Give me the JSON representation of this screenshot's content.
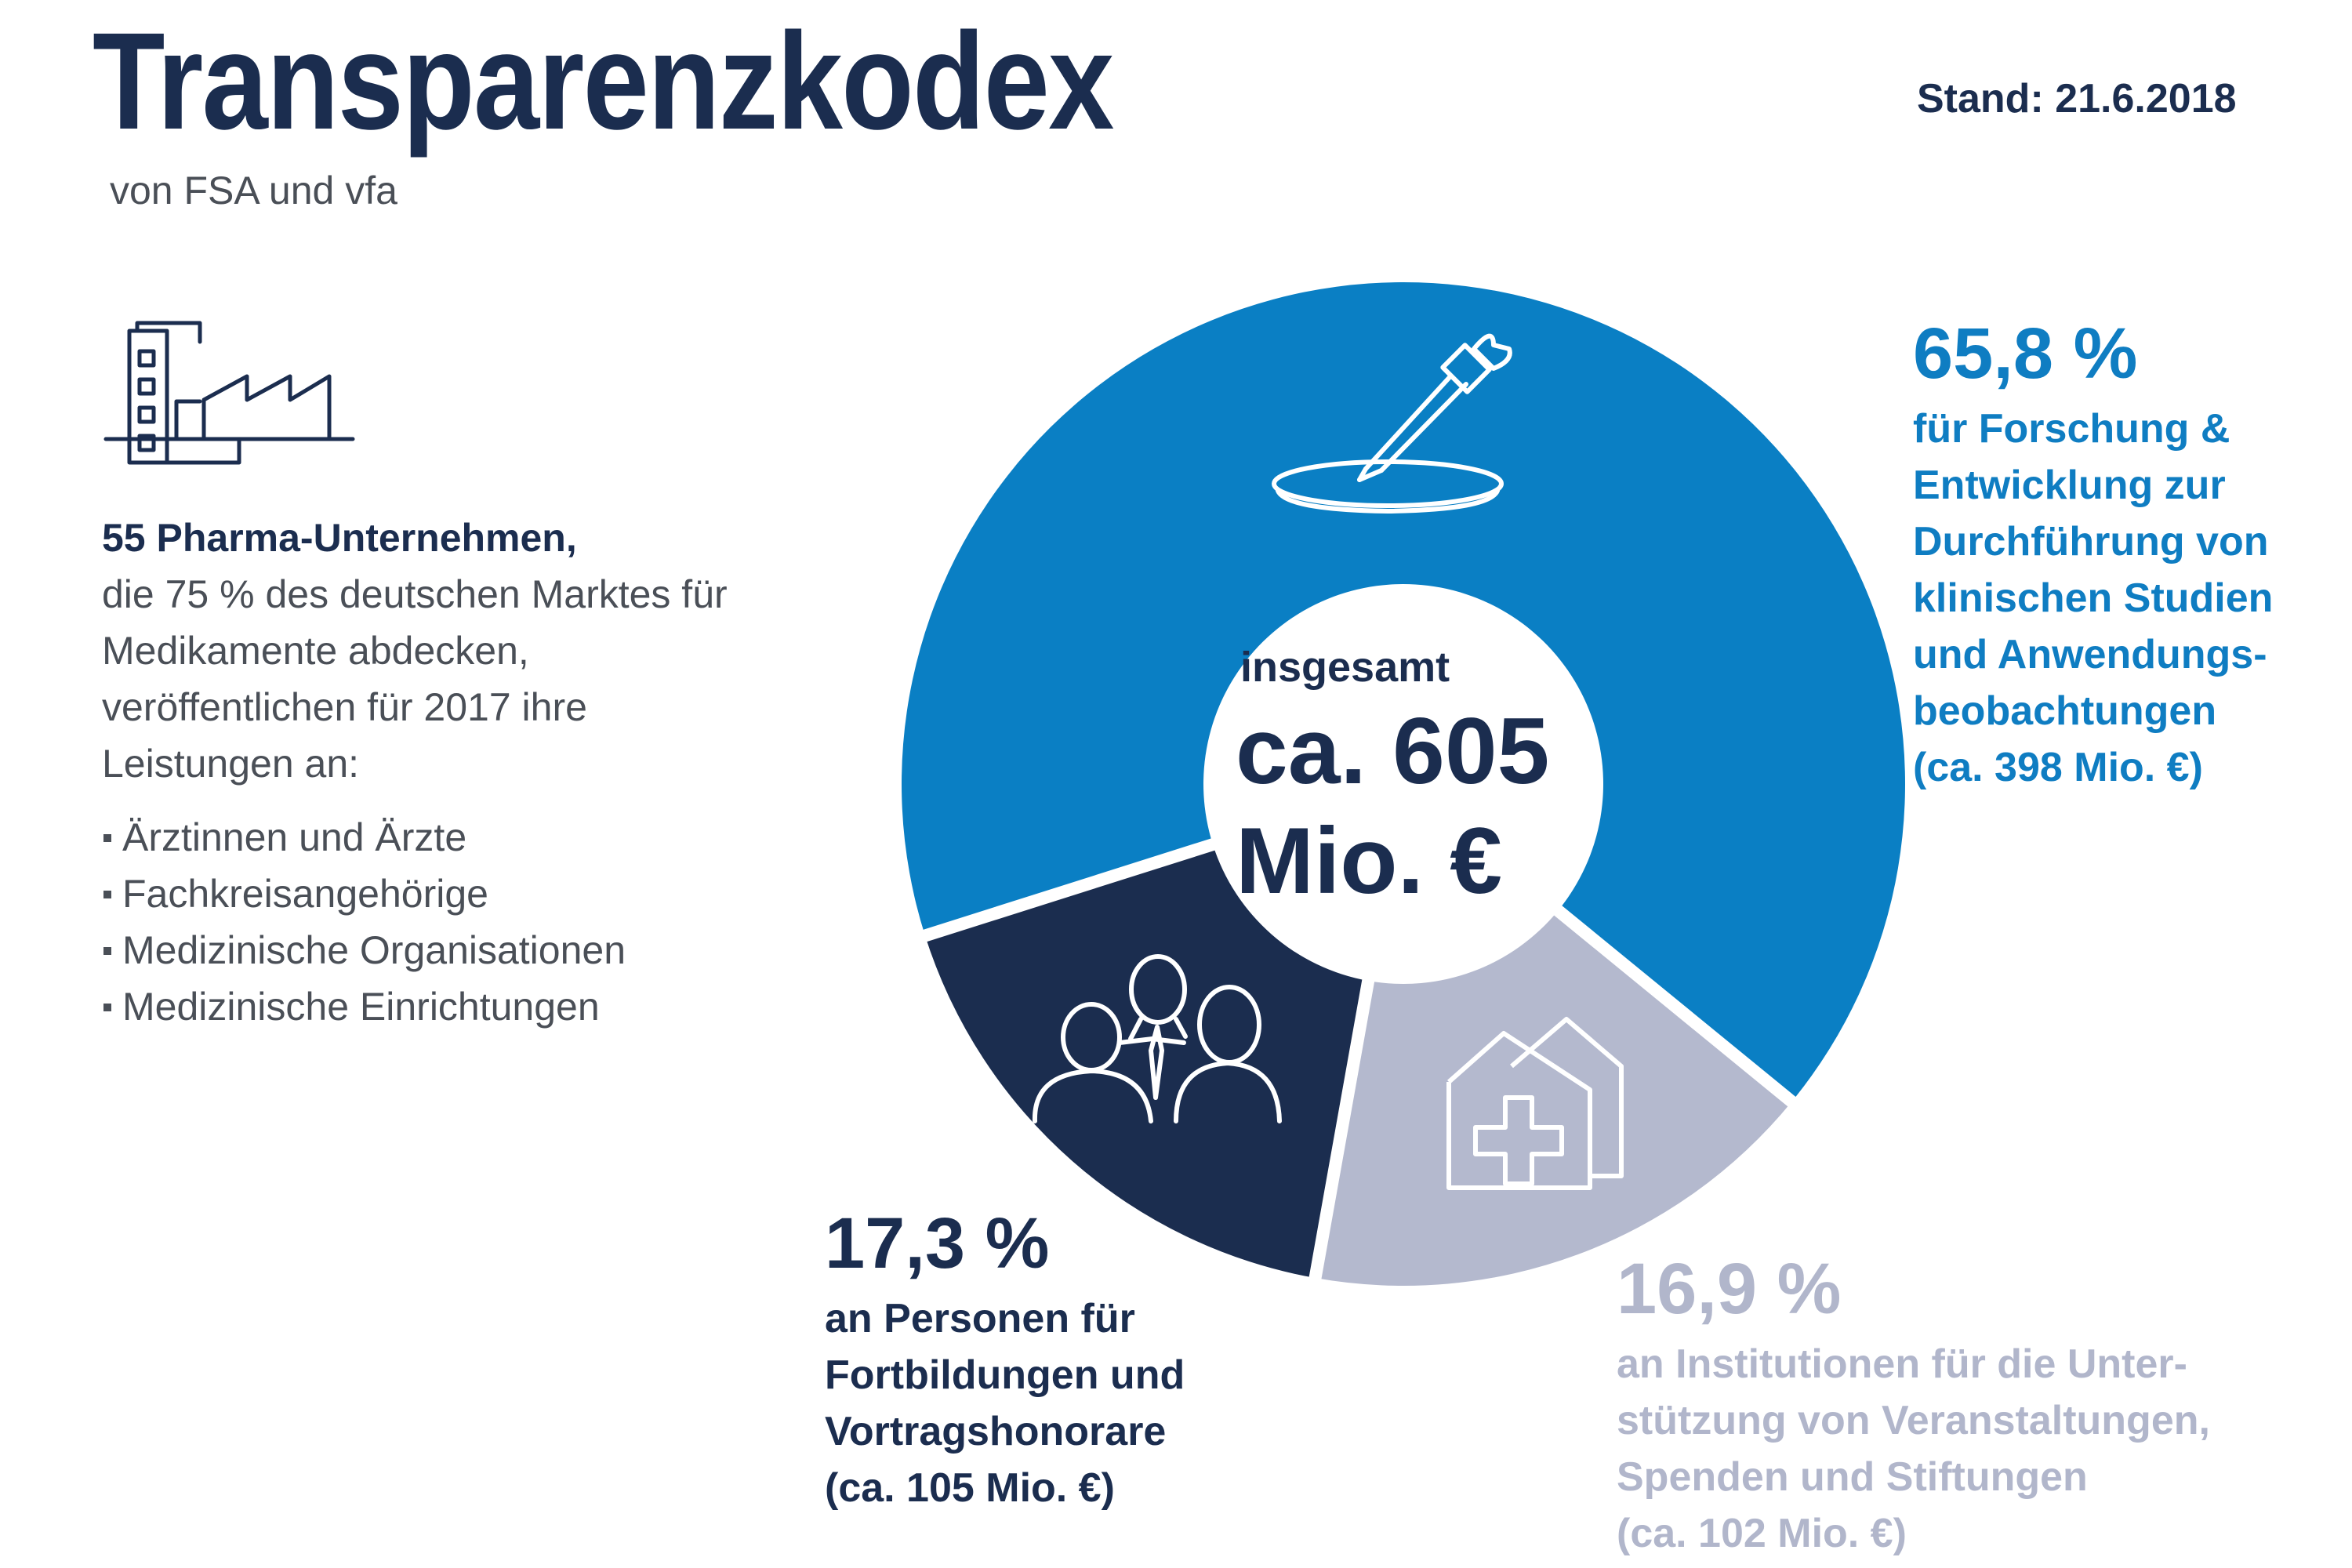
{
  "header": {
    "title": "Transparenzkodex",
    "subtitle": "von FSA und vfa",
    "stand": "Stand: 21.6.2018"
  },
  "intro": {
    "lead": "55 Pharma-Unternehmen,",
    "body": "die 75 % des deutschen Marktes für Medikamente abdecken, veröffentlichen für 2017 ihre Leistungen an:",
    "items": [
      "Ärztinnen und Ärzte",
      "Fachkreisangehörige",
      "Medizinische Organisationen",
      "Medizinische Einrichtungen"
    ]
  },
  "icons": {
    "factory": "factory-icon",
    "rd": "pipette-petri-dish-icon",
    "persons": "people-group-icon",
    "institutions": "hospital-icon"
  },
  "chart_data": {
    "type": "pie",
    "center_caption": "insgesamt",
    "center_value": "ca. 605 Mio. €",
    "total": 605,
    "unit": "Mio. €",
    "slices": [
      {
        "percent_label": "65,8 %",
        "percent": 65.8,
        "value": 398,
        "description": "für Forschung & Entwicklung zur Durchführung von klinischen Studien und Anwendungs-beobachtungen",
        "amount_label": "(ca. 398 Mio. €)",
        "color": "#0a7fc4"
      },
      {
        "percent_label": "16,9 %",
        "percent": 16.9,
        "value": 102,
        "description": "an Institutionen für die Unter-stützung von Veranstaltungen, Spenden und Stiftungen",
        "amount_label": "(ca. 102 Mio. €)",
        "color": "#b4b9ce"
      },
      {
        "percent_label": "17,3 %",
        "percent": 17.3,
        "value": 105,
        "description": "an Personen für Fortbildungen und Vortragshonorare",
        "amount_label": "(ca. 105 Mio. €)",
        "color": "#1b2d4f"
      }
    ]
  }
}
